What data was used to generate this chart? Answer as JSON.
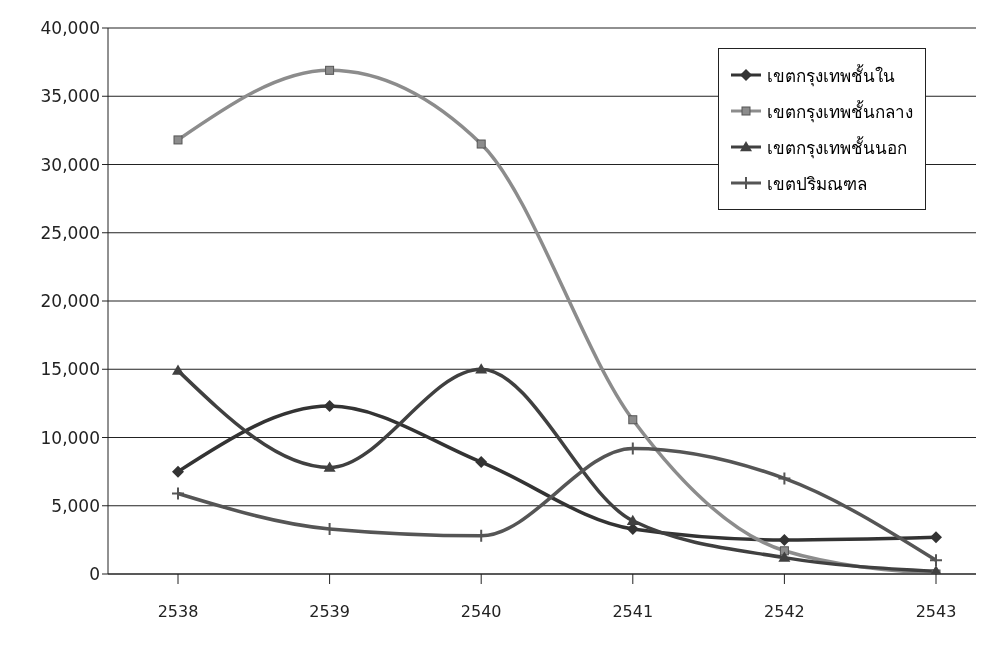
{
  "chart_data": {
    "type": "line",
    "categories": [
      "2538",
      "2539",
      "2540",
      "2541",
      "2542",
      "2543"
    ],
    "series": [
      {
        "name": "เขตกรุงเทพชั้นใน",
        "color": "#333333",
        "marker": "diamond",
        "values": [
          7500,
          12300,
          8200,
          3300,
          2500,
          2700
        ]
      },
      {
        "name": "เขตกรุงเทพชั้นกลาง",
        "color": "#8c8c8c",
        "marker": "square",
        "values": [
          31800,
          36900,
          31500,
          11300,
          1700,
          0
        ]
      },
      {
        "name": "เขตกรุงเทพชั้นนอก",
        "color": "#404040",
        "marker": "triangle",
        "values": [
          14900,
          7800,
          15000,
          3900,
          1200,
          200
        ]
      },
      {
        "name": "เขตปริมณฑล",
        "color": "#555555",
        "marker": "cross",
        "values": [
          5900,
          3300,
          2800,
          9200,
          7000,
          1000
        ]
      }
    ],
    "ylim": [
      0,
      40000
    ],
    "yticks": [
      {
        "value": 0,
        "label": "0"
      },
      {
        "value": 5000,
        "label": "5,000"
      },
      {
        "value": 10000,
        "label": "10,000"
      },
      {
        "value": 15000,
        "label": "15,000"
      },
      {
        "value": 20000,
        "label": "20,000"
      },
      {
        "value": 25000,
        "label": "25,000"
      },
      {
        "value": 30000,
        "label": "30,000"
      },
      {
        "value": 35000,
        "label": "35,000"
      },
      {
        "value": 40000,
        "label": "40,000"
      }
    ],
    "grid": "y",
    "legend": "top right"
  }
}
